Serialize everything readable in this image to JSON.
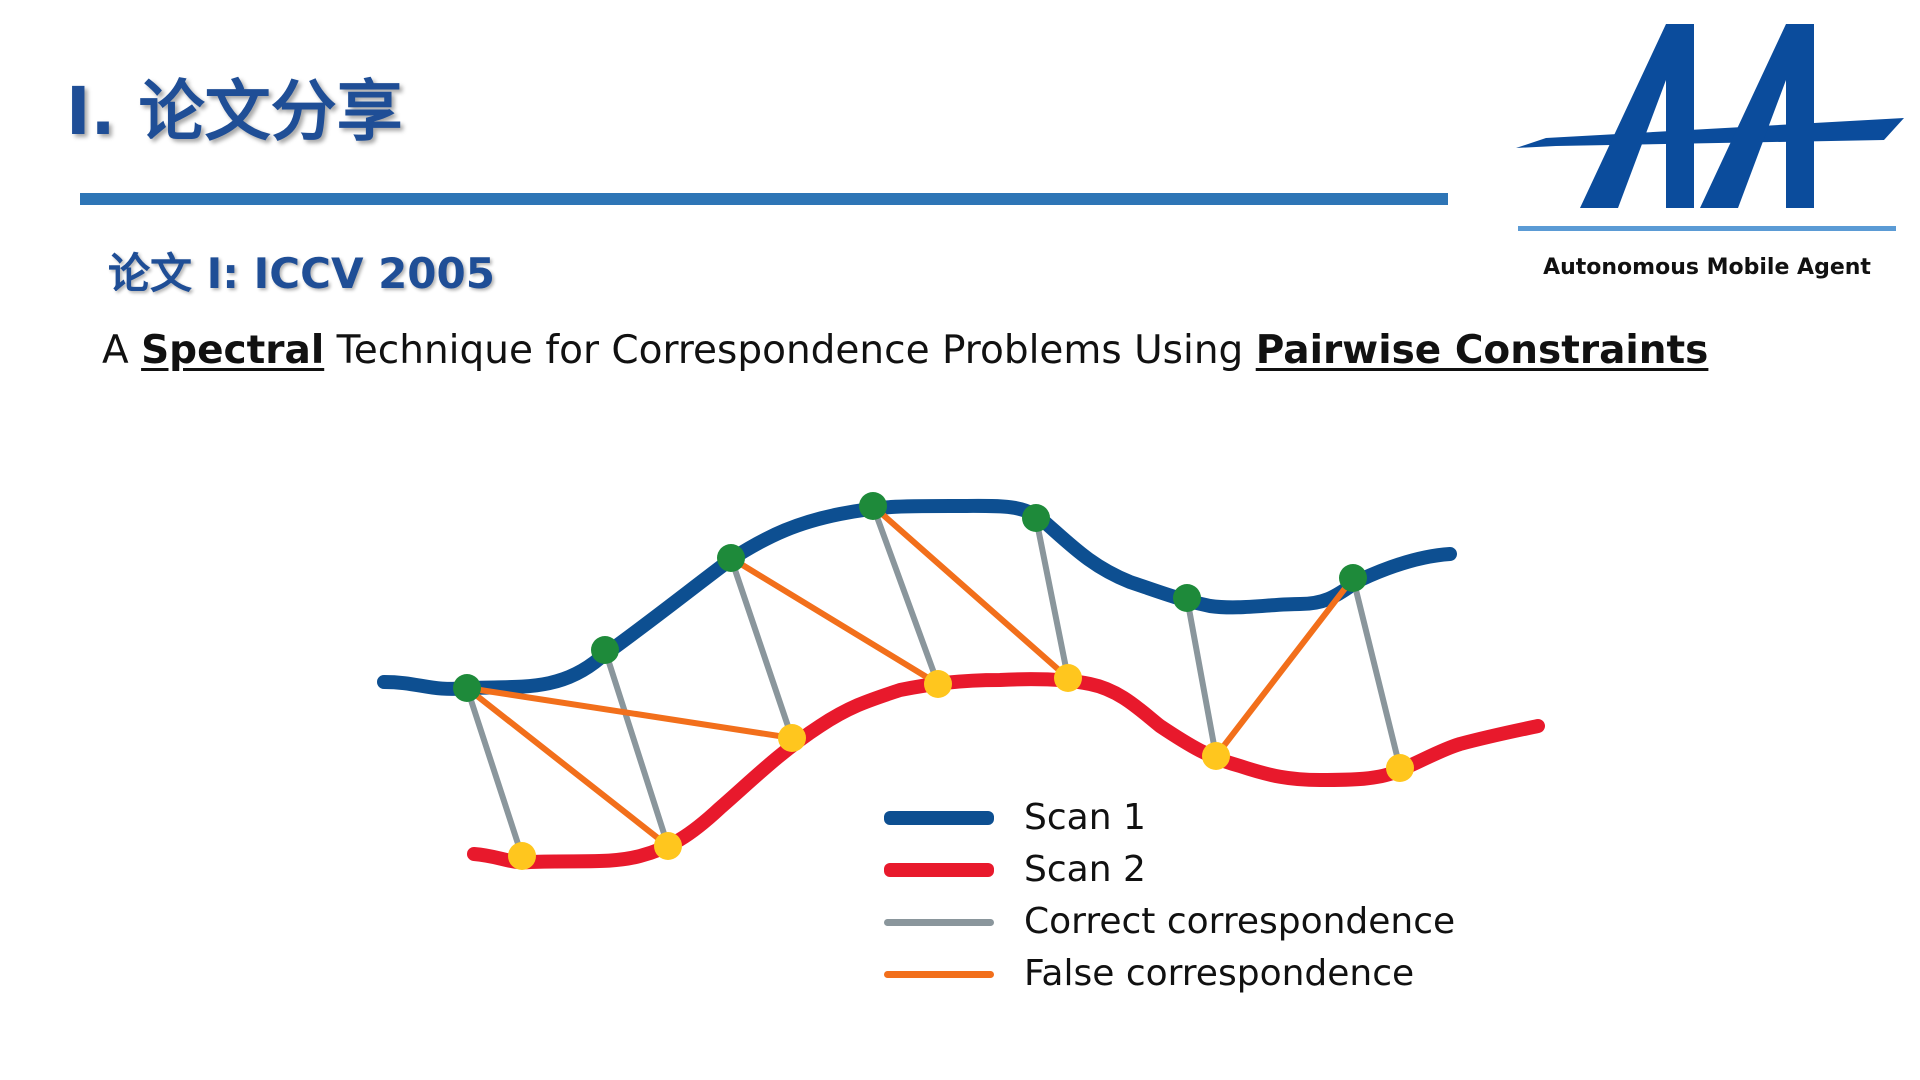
{
  "header": {
    "title": "I. 论文分享",
    "subtitle": "论文 I: ICCV 2005"
  },
  "paper": {
    "prefix": "A ",
    "keyword1": "Spectral",
    "middle": " Technique for Correspondence Problems Using ",
    "keyword2": "Pairwise Constraints"
  },
  "logo": {
    "caption": "Autonomous Mobile Agent",
    "color": "#0b4c9c"
  },
  "diagram": {
    "colors": {
      "scan1": "#0d4f91",
      "scan2": "#e8192c",
      "correct": "#8a969c",
      "false": "#f26f1b",
      "scan1_point": "#1e8a3a",
      "scan2_point": "#ffc61e"
    },
    "scan1_points": 7,
    "scan2_points": 7,
    "correct_correspondences": 7,
    "false_correspondences": 5
  },
  "legend": {
    "items": [
      {
        "label": "Scan 1",
        "color": "#0d4f91"
      },
      {
        "label": "Scan 2",
        "color": "#e8192c"
      },
      {
        "label": "Correct correspondence",
        "color": "#8a969c"
      },
      {
        "label": "False correspondence",
        "color": "#f26f1b"
      }
    ]
  }
}
